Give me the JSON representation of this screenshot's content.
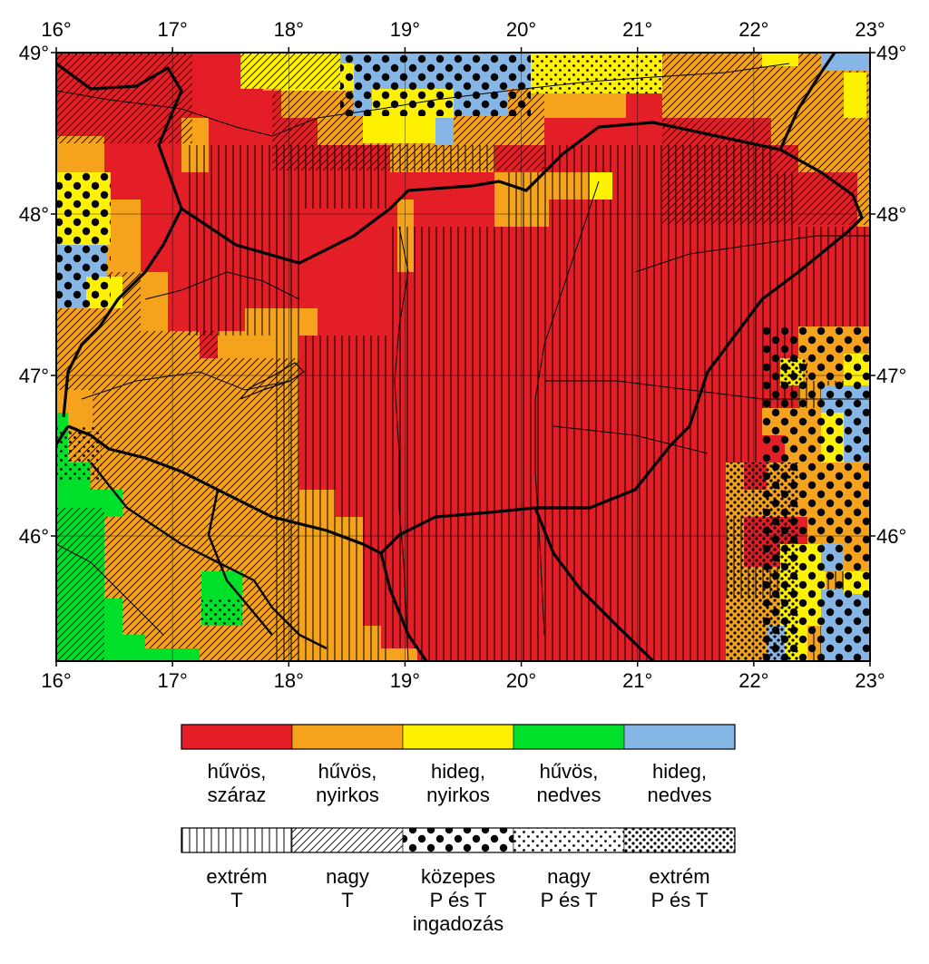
{
  "map": {
    "lon_ticks": [
      "16°",
      "17°",
      "18°",
      "19°",
      "20°",
      "21°",
      "22°",
      "23°"
    ],
    "lat_ticks": [
      "49°",
      "48°",
      "47°",
      "46°"
    ],
    "colors": {
      "red": "#e41e26",
      "orange": "#f5a21c",
      "yellow": "#fff200",
      "green": "#00e02a",
      "blue": "#85b6e6"
    }
  },
  "legend": {
    "colors": [
      {
        "label": "hűvös,\nszáraz",
        "color": "#e41e26",
        "icon": "red-swatch"
      },
      {
        "label": "hűvös,\nnyirkos",
        "color": "#f5a21c",
        "icon": "orange-swatch"
      },
      {
        "label": "hideg,\nnyirkos",
        "color": "#fff200",
        "icon": "yellow-swatch"
      },
      {
        "label": "hűvös,\nnedves",
        "color": "#00e02a",
        "icon": "green-swatch"
      },
      {
        "label": "hideg,\nnedves",
        "color": "#85b6e6",
        "icon": "blue-swatch"
      }
    ],
    "patterns": [
      {
        "label": "extrém\nT",
        "icon": "vertical-lines-pattern"
      },
      {
        "label": "nagy\nT",
        "icon": "diagonal-hatch-pattern"
      },
      {
        "label": "közepes\nP és T\ningadozás",
        "icon": "large-dots-pattern"
      },
      {
        "label": "nagy\nP és T",
        "icon": "small-dots-pattern"
      },
      {
        "label": "extrém\nP és T",
        "icon": "dense-dots-pattern"
      }
    ]
  }
}
